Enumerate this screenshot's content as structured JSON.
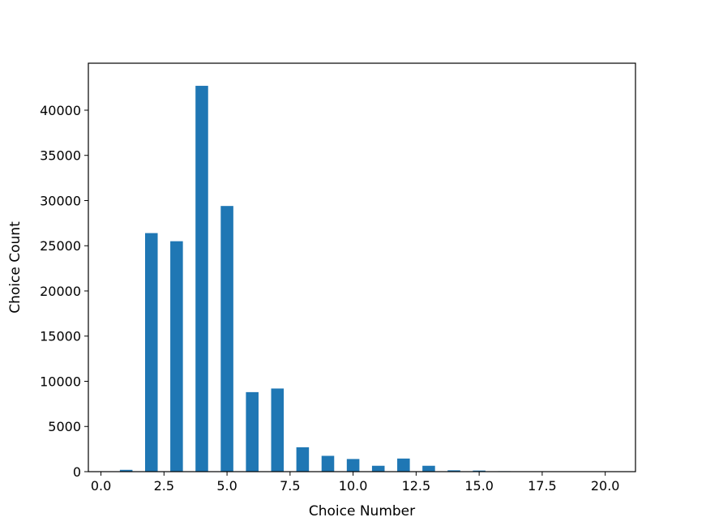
{
  "chart_data": {
    "type": "bar",
    "xlabel": "Choice Number",
    "ylabel": "Choice Count",
    "xlim": [
      -0.5,
      21.2
    ],
    "ylim": [
      0,
      45200
    ],
    "bar_width": 0.5,
    "bar_color": "#1f77b4",
    "grid": false,
    "x": [
      1,
      2,
      3,
      4,
      5,
      6,
      7,
      8,
      9,
      10,
      11,
      12,
      13,
      14,
      15,
      16,
      17,
      18,
      19,
      20
    ],
    "values": [
      200,
      26400,
      25500,
      42700,
      29400,
      8800,
      9200,
      2700,
      1750,
      1400,
      650,
      1450,
      650,
      150,
      120,
      50,
      30,
      20,
      10,
      10
    ],
    "x_ticks": [
      0.0,
      2.5,
      5.0,
      7.5,
      10.0,
      12.5,
      15.0,
      17.5,
      20.0
    ],
    "x_tick_labels": [
      "0.0",
      "2.5",
      "5.0",
      "7.5",
      "10.0",
      "12.5",
      "15.0",
      "17.5",
      "20.0"
    ],
    "y_ticks": [
      0,
      5000,
      10000,
      15000,
      20000,
      25000,
      30000,
      35000,
      40000
    ],
    "y_tick_labels": [
      "0",
      "5000",
      "10000",
      "15000",
      "20000",
      "25000",
      "30000",
      "35000",
      "40000"
    ]
  }
}
